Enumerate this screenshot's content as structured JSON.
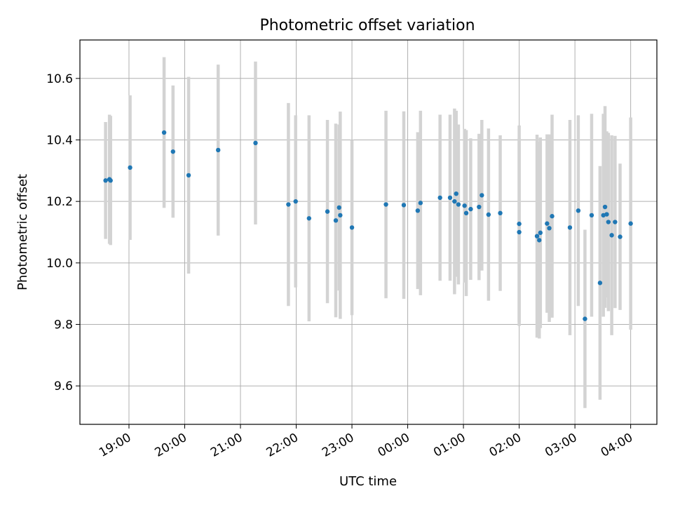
{
  "chart_data": {
    "type": "scatter",
    "title": "Photometric offset variation",
    "xlabel": "UTC time",
    "ylabel": "Photometric offset",
    "x_unit": "hours since 00:00 UTC (negative = previous day)",
    "xlim": [
      -5.88,
      4.47
    ],
    "ylim": [
      9.475,
      10.725
    ],
    "xticks": [
      {
        "v": -5,
        "label": "19:00"
      },
      {
        "v": -4,
        "label": "20:00"
      },
      {
        "v": -3,
        "label": "21:00"
      },
      {
        "v": -2,
        "label": "22:00"
      },
      {
        "v": -1,
        "label": "23:00"
      },
      {
        "v": 0,
        "label": "00:00"
      },
      {
        "v": 1,
        "label": "01:00"
      },
      {
        "v": 2,
        "label": "02:00"
      },
      {
        "v": 3,
        "label": "03:00"
      },
      {
        "v": 4,
        "label": "04:00"
      }
    ],
    "yticks": [
      {
        "v": 9.6,
        "label": "9.6"
      },
      {
        "v": 9.8,
        "label": "9.8"
      },
      {
        "v": 10.0,
        "label": "10.0"
      },
      {
        "v": 10.2,
        "label": "10.2"
      },
      {
        "v": 10.4,
        "label": "10.4"
      },
      {
        "v": 10.6,
        "label": "10.6"
      }
    ],
    "grid": true,
    "colors": {
      "point": "#1f77b4",
      "errorbar": "#d3d3d3",
      "grid": "#b0b0b0"
    },
    "points": [
      {
        "x": -5.42,
        "y": 10.268,
        "err": 0.19
      },
      {
        "x": -5.35,
        "y": 10.272,
        "err": 0.21
      },
      {
        "x": -5.33,
        "y": 10.268,
        "err": 0.21
      },
      {
        "x": -4.98,
        "y": 10.31,
        "err": 0.235
      },
      {
        "x": -4.37,
        "y": 10.424,
        "err": 0.245
      },
      {
        "x": -4.21,
        "y": 10.362,
        "err": 0.215
      },
      {
        "x": -3.93,
        "y": 10.285,
        "err": 0.32
      },
      {
        "x": -3.4,
        "y": 10.367,
        "err": 0.278
      },
      {
        "x": -2.73,
        "y": 10.39,
        "err": 0.265
      },
      {
        "x": -2.14,
        "y": 10.19,
        "err": 0.33
      },
      {
        "x": -2.01,
        "y": 10.2,
        "err": 0.28
      },
      {
        "x": -1.77,
        "y": 10.145,
        "err": 0.335
      },
      {
        "x": -1.44,
        "y": 10.167,
        "err": 0.298
      },
      {
        "x": -1.29,
        "y": 10.138,
        "err": 0.315
      },
      {
        "x": -1.23,
        "y": 10.18,
        "err": 0.27
      },
      {
        "x": -1.21,
        "y": 10.155,
        "err": 0.337
      },
      {
        "x": -1.0,
        "y": 10.115,
        "err": 0.285
      },
      {
        "x": -0.39,
        "y": 10.19,
        "err": 0.305
      },
      {
        "x": -0.07,
        "y": 10.188,
        "err": 0.305
      },
      {
        "x": 0.18,
        "y": 10.17,
        "err": 0.255
      },
      {
        "x": 0.23,
        "y": 10.195,
        "err": 0.3
      },
      {
        "x": 0.58,
        "y": 10.212,
        "err": 0.27
      },
      {
        "x": 0.76,
        "y": 10.212,
        "err": 0.27
      },
      {
        "x": 0.84,
        "y": 10.2,
        "err": 0.302
      },
      {
        "x": 0.87,
        "y": 10.225,
        "err": 0.27
      },
      {
        "x": 0.91,
        "y": 10.19,
        "err": 0.26
      },
      {
        "x": 1.02,
        "y": 10.186,
        "err": 0.25
      },
      {
        "x": 1.05,
        "y": 10.162,
        "err": 0.27
      },
      {
        "x": 1.13,
        "y": 10.175,
        "err": 0.23
      },
      {
        "x": 1.28,
        "y": 10.182,
        "err": 0.238
      },
      {
        "x": 1.33,
        "y": 10.22,
        "err": 0.245
      },
      {
        "x": 1.45,
        "y": 10.157,
        "err": 0.28
      },
      {
        "x": 1.66,
        "y": 10.162,
        "err": 0.253
      },
      {
        "x": 2.0,
        "y": 10.127,
        "err": 0.32
      },
      {
        "x": 2.0,
        "y": 10.1,
        "err": 0.305
      },
      {
        "x": 2.32,
        "y": 10.087,
        "err": 0.33
      },
      {
        "x": 2.36,
        "y": 10.074,
        "err": 0.32
      },
      {
        "x": 2.38,
        "y": 10.098,
        "err": 0.31
      },
      {
        "x": 2.5,
        "y": 10.128,
        "err": 0.29
      },
      {
        "x": 2.54,
        "y": 10.113,
        "err": 0.305
      },
      {
        "x": 2.59,
        "y": 10.152,
        "err": 0.33
      },
      {
        "x": 2.91,
        "y": 10.115,
        "err": 0.35
      },
      {
        "x": 3.06,
        "y": 10.17,
        "err": 0.31
      },
      {
        "x": 3.18,
        "y": 9.818,
        "err": 0.29
      },
      {
        "x": 3.3,
        "y": 10.155,
        "err": 0.33
      },
      {
        "x": 3.45,
        "y": 9.935,
        "err": 0.38
      },
      {
        "x": 3.51,
        "y": 10.155,
        "err": 0.33
      },
      {
        "x": 3.54,
        "y": 10.182,
        "err": 0.328
      },
      {
        "x": 3.57,
        "y": 10.158,
        "err": 0.27
      },
      {
        "x": 3.6,
        "y": 10.133,
        "err": 0.29
      },
      {
        "x": 3.66,
        "y": 10.09,
        "err": 0.325
      },
      {
        "x": 3.72,
        "y": 10.133,
        "err": 0.28
      },
      {
        "x": 3.81,
        "y": 10.085,
        "err": 0.238
      },
      {
        "x": 4.0,
        "y": 10.128,
        "err": 0.345
      }
    ]
  }
}
